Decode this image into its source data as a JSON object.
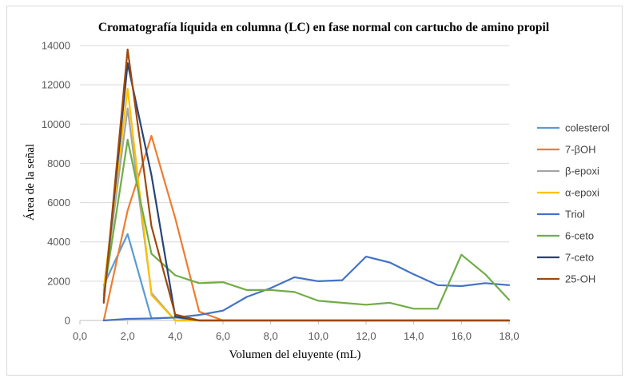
{
  "chart_data": {
    "type": "line",
    "title": "Cromatografía líquida en columna (LC) en fase normal con cartucho de amino propil",
    "xlabel": "Volumen del eluyente (mL)",
    "ylabel": "Área de la señal",
    "xlim": [
      0,
      18
    ],
    "ylim": [
      0,
      14000
    ],
    "x_ticks": [
      0,
      2,
      4,
      6,
      8,
      10,
      12,
      14,
      16,
      18
    ],
    "x_tick_labels": [
      "0,0",
      "2,0",
      "4,0",
      "6,0",
      "8,0",
      "10,0",
      "12,0",
      "14,0",
      "16,0",
      "18,0"
    ],
    "y_ticks": [
      0,
      2000,
      4000,
      6000,
      8000,
      10000,
      12000,
      14000
    ],
    "y_tick_labels": [
      "0",
      "2000",
      "4000",
      "6000",
      "8000",
      "10000",
      "12000",
      "14000"
    ],
    "grid": true,
    "legend_position": "right",
    "x": [
      1,
      2,
      3,
      4,
      5,
      6,
      7,
      8,
      9,
      10,
      11,
      12,
      13,
      14,
      15,
      16,
      17,
      18
    ],
    "series": [
      {
        "name": "colesterol",
        "color": "#5B9BD5",
        "values": [
          1800,
          4400,
          100,
          150,
          0,
          0,
          0,
          0,
          0,
          0,
          0,
          0,
          0,
          0,
          0,
          0,
          0,
          0
        ]
      },
      {
        "name": "7-βOH",
        "color": "#ED7D31",
        "values": [
          0,
          5600,
          9400,
          5200,
          450,
          0,
          0,
          0,
          0,
          0,
          0,
          0,
          0,
          0,
          0,
          0,
          0,
          0
        ]
      },
      {
        "name": "β-epoxi",
        "color": "#A5A5A5",
        "values": [
          1500,
          10800,
          1400,
          0,
          0,
          0,
          0,
          0,
          0,
          0,
          0,
          0,
          0,
          0,
          0,
          0,
          0,
          0
        ]
      },
      {
        "name": "α-epoxi",
        "color": "#FFC000",
        "values": [
          1600,
          11800,
          1300,
          0,
          0,
          0,
          0,
          0,
          0,
          0,
          0,
          0,
          0,
          0,
          0,
          0,
          0,
          0
        ]
      },
      {
        "name": "Triol",
        "color": "#4472C4",
        "values": [
          0,
          80,
          100,
          150,
          280,
          500,
          1200,
          1650,
          2200,
          2000,
          2050,
          3250,
          2950,
          2350,
          1800,
          1750,
          1900,
          1800
        ]
      },
      {
        "name": "6-ceto",
        "color": "#70AD47",
        "values": [
          1300,
          9200,
          3400,
          2300,
          1900,
          1950,
          1550,
          1550,
          1450,
          1000,
          900,
          800,
          900,
          600,
          600,
          3350,
          2350,
          1050
        ]
      },
      {
        "name": "7-ceto",
        "color": "#264478",
        "values": [
          1000,
          13100,
          7400,
          200,
          0,
          0,
          0,
          0,
          0,
          0,
          0,
          0,
          0,
          0,
          0,
          0,
          0,
          0
        ]
      },
      {
        "name": "25-OH",
        "color": "#9E480E",
        "values": [
          900,
          13800,
          4800,
          300,
          0,
          0,
          0,
          0,
          0,
          0,
          0,
          0,
          0,
          0,
          0,
          0,
          0,
          0
        ]
      }
    ]
  }
}
